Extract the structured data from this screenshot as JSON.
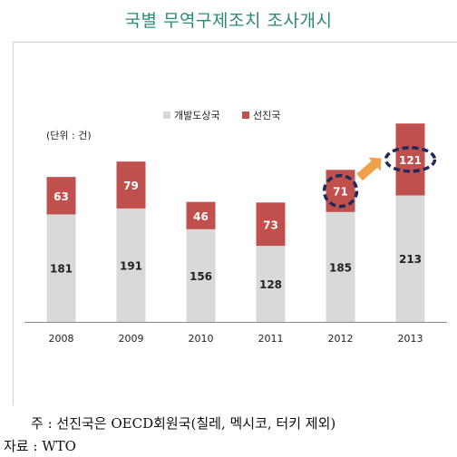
{
  "title": "국별 무역구제조치 조사개시",
  "note": "주 : 선진국은 OECD회원국(칠레, 멕시코, 터키 제외)",
  "source": "자료 : WTO",
  "colors": {
    "developing": "#d9d9d9",
    "advanced": "#c0504d",
    "title": "#2e8b73",
    "arrow": "#f0a04b",
    "highlight": "#1f2a5a"
  },
  "chart_data": {
    "type": "bar",
    "stacked": true,
    "unit_label": "(단위 : 건)",
    "categories": [
      "2008",
      "2009",
      "2010",
      "2011",
      "2012",
      "2013"
    ],
    "series": [
      {
        "name": "개발도상국",
        "values": [
          181,
          191,
          156,
          128,
          185,
          213
        ]
      },
      {
        "name": "선진국",
        "values": [
          63,
          79,
          46,
          73,
          71,
          121
        ]
      }
    ],
    "ylim": [
      0,
      340
    ],
    "legend": "top-center",
    "grid": false,
    "highlighted": [
      {
        "category": "2012",
        "series": "선진국",
        "value": 71
      },
      {
        "category": "2013",
        "series": "선진국",
        "value": 121
      }
    ]
  }
}
